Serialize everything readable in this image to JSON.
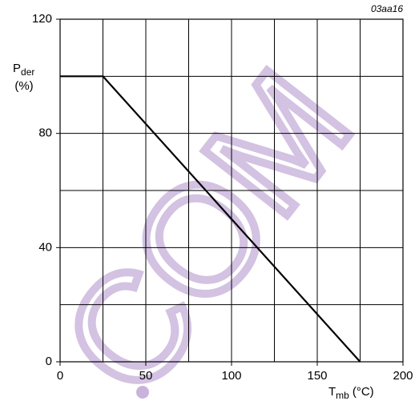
{
  "chart_data": {
    "type": "line",
    "code": "03aa16",
    "xlabel": {
      "main": "T",
      "sub": "mb",
      "unit": "(°C)"
    },
    "ylabel": {
      "main": "P",
      "sub": "der",
      "unit": "(%)"
    },
    "x": [
      0,
      25,
      175
    ],
    "values": [
      100,
      100,
      0
    ],
    "color": "#000000",
    "xlim": [
      0,
      200
    ],
    "xticks": [
      0,
      50,
      100,
      150,
      200
    ],
    "xgrid_step": 25,
    "ylim": [
      0,
      120
    ],
    "yticks": [
      0,
      40,
      80,
      120
    ],
    "ygrid_step": 20,
    "grid": true,
    "watermark": "COM",
    "watermark_color": "#c9b3dc"
  }
}
